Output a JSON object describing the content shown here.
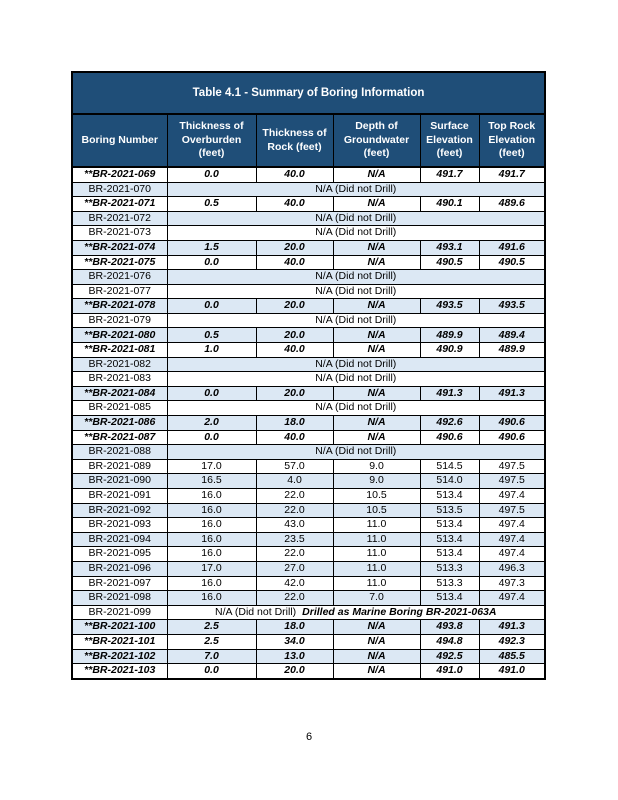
{
  "page": {
    "number": "6"
  },
  "table": {
    "title": "Table 4.1 - Summary of Boring Information",
    "columns": [
      "Boring Number",
      "Thickness of Overburden (feet)",
      "Thickness of Rock (feet)",
      "Depth of Groundwater (feet)",
      "Surface Elevation (feet)",
      "Top Rock Elevation (feet)"
    ],
    "colors": {
      "header_bg": "#1F4E78",
      "header_text": "#FFFFFF",
      "alt_row_bg": "#DCE8F4",
      "border": "#000000"
    },
    "rows": [
      {
        "boring": "**BR-2021-069",
        "overburden": "0.0",
        "rock": "40.0",
        "groundwater": "N/A",
        "surface": "491.7",
        "top_rock": "491.7",
        "emphasis": true
      },
      {
        "boring": "BR-2021-070",
        "merged": "N/A (Did not Drill)"
      },
      {
        "boring": "**BR-2021-071",
        "overburden": "0.5",
        "rock": "40.0",
        "groundwater": "N/A",
        "surface": "490.1",
        "top_rock": "489.6",
        "emphasis": true
      },
      {
        "boring": "BR-2021-072",
        "merged": "N/A (Did not Drill)"
      },
      {
        "boring": "BR-2021-073",
        "merged": "N/A (Did not Drill)"
      },
      {
        "boring": "**BR-2021-074",
        "overburden": "1.5",
        "rock": "20.0",
        "groundwater": "N/A",
        "surface": "493.1",
        "top_rock": "491.6",
        "emphasis": true
      },
      {
        "boring": "**BR-2021-075",
        "overburden": "0.0",
        "rock": "40.0",
        "groundwater": "N/A",
        "surface": "490.5",
        "top_rock": "490.5",
        "emphasis": true
      },
      {
        "boring": "BR-2021-076",
        "merged": "N/A (Did not Drill)"
      },
      {
        "boring": "BR-2021-077",
        "merged": "N/A (Did not Drill)"
      },
      {
        "boring": "**BR-2021-078",
        "overburden": "0.0",
        "rock": "20.0",
        "groundwater": "N/A",
        "surface": "493.5",
        "top_rock": "493.5",
        "emphasis": true
      },
      {
        "boring": "BR-2021-079",
        "merged": "N/A (Did not Drill)"
      },
      {
        "boring": "**BR-2021-080",
        "overburden": "0.5",
        "rock": "20.0",
        "groundwater": "N/A",
        "surface": "489.9",
        "top_rock": "489.4",
        "emphasis": true
      },
      {
        "boring": "**BR-2021-081",
        "overburden": "1.0",
        "rock": "40.0",
        "groundwater": "N/A",
        "surface": "490.9",
        "top_rock": "489.9",
        "emphasis": true
      },
      {
        "boring": "BR-2021-082",
        "merged": "N/A (Did not Drill)"
      },
      {
        "boring": "BR-2021-083",
        "merged": "N/A (Did not Drill)"
      },
      {
        "boring": "**BR-2021-084",
        "overburden": "0.0",
        "rock": "20.0",
        "groundwater": "N/A",
        "surface": "491.3",
        "top_rock": "491.3",
        "emphasis": true
      },
      {
        "boring": "BR-2021-085",
        "merged": "N/A (Did not Drill)"
      },
      {
        "boring": "**BR-2021-086",
        "overburden": "2.0",
        "rock": "18.0",
        "groundwater": "N/A",
        "surface": "492.6",
        "top_rock": "490.6",
        "emphasis": true
      },
      {
        "boring": "**BR-2021-087",
        "overburden": "0.0",
        "rock": "40.0",
        "groundwater": "N/A",
        "surface": "490.6",
        "top_rock": "490.6",
        "emphasis": true
      },
      {
        "boring": "BR-2021-088",
        "merged": "N/A (Did not Drill)"
      },
      {
        "boring": "BR-2021-089",
        "overburden": "17.0",
        "rock": "57.0",
        "groundwater": "9.0",
        "surface": "514.5",
        "top_rock": "497.5"
      },
      {
        "boring": "BR-2021-090",
        "overburden": "16.5",
        "rock": "4.0",
        "groundwater": "9.0",
        "surface": "514.0",
        "top_rock": "497.5"
      },
      {
        "boring": "BR-2021-091",
        "overburden": "16.0",
        "rock": "22.0",
        "groundwater": "10.5",
        "surface": "513.4",
        "top_rock": "497.4"
      },
      {
        "boring": "BR-2021-092",
        "overburden": "16.0",
        "rock": "22.0",
        "groundwater": "10.5",
        "surface": "513.5",
        "top_rock": "497.5"
      },
      {
        "boring": "BR-2021-093",
        "overburden": "16.0",
        "rock": "43.0",
        "groundwater": "11.0",
        "surface": "513.4",
        "top_rock": "497.4"
      },
      {
        "boring": "BR-2021-094",
        "overburden": "16.0",
        "rock": "23.5",
        "groundwater": "11.0",
        "surface": "513.4",
        "top_rock": "497.4"
      },
      {
        "boring": "BR-2021-095",
        "overburden": "16.0",
        "rock": "22.0",
        "groundwater": "11.0",
        "surface": "513.4",
        "top_rock": "497.4"
      },
      {
        "boring": "BR-2021-096",
        "overburden": "17.0",
        "rock": "27.0",
        "groundwater": "11.0",
        "surface": "513.3",
        "top_rock": "496.3"
      },
      {
        "boring": "BR-2021-097",
        "overburden": "16.0",
        "rock": "42.0",
        "groundwater": "11.0",
        "surface": "513.3",
        "top_rock": "497.3"
      },
      {
        "boring": "BR-2021-098",
        "overburden": "16.0",
        "rock": "22.0",
        "groundwater": "7.0",
        "surface": "513.4",
        "top_rock": "497.4"
      },
      {
        "boring": "BR-2021-099",
        "merged": "N/A (Did not Drill)",
        "merged_note": "Drilled as Marine Boring BR-2021-063A"
      },
      {
        "boring": "**BR-2021-100",
        "overburden": "2.5",
        "rock": "18.0",
        "groundwater": "N/A",
        "surface": "493.8",
        "top_rock": "491.3",
        "emphasis": true
      },
      {
        "boring": "**BR-2021-101",
        "overburden": "2.5",
        "rock": "34.0",
        "groundwater": "N/A",
        "surface": "494.8",
        "top_rock": "492.3",
        "emphasis": true
      },
      {
        "boring": "**BR-2021-102",
        "overburden": "7.0",
        "rock": "13.0",
        "groundwater": "N/A",
        "surface": "492.5",
        "top_rock": "485.5",
        "emphasis": true
      },
      {
        "boring": "**BR-2021-103",
        "overburden": "0.0",
        "rock": "20.0",
        "groundwater": "N/A",
        "surface": "491.0",
        "top_rock": "491.0",
        "emphasis": true
      }
    ]
  }
}
